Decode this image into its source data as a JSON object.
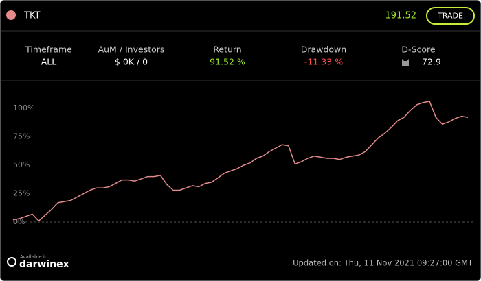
{
  "header": {
    "symbol": "TKT",
    "price": "191.52",
    "button": "TRADE"
  },
  "stats": [
    {
      "label": "Timeframe",
      "value": "ALL"
    },
    {
      "label": "AuM / Investors",
      "value": "$ 0K / 0"
    },
    {
      "label": "Return",
      "value": "91.52 %"
    },
    {
      "label": "Drawdown",
      "value": "-11.33 %"
    },
    {
      "label": "D-Score",
      "value": "72.9"
    }
  ],
  "footer": {
    "brand_small": "Available in",
    "brand": "darwinex",
    "updated": "Updated on: Thu, 11 Nov 2021 09:27:00 GMT"
  },
  "chart_data": {
    "type": "line",
    "color": "#e58a8a",
    "values": [
      2,
      3,
      5,
      7,
      1,
      6,
      11,
      17,
      18,
      19,
      22,
      25,
      28,
      30,
      30,
      31,
      34,
      37,
      37,
      36,
      38,
      40,
      40,
      41,
      33,
      28,
      28,
      30,
      32,
      31,
      34,
      35,
      39,
      43,
      45,
      47,
      50,
      52,
      56,
      58,
      62,
      65,
      68,
      67,
      51,
      53,
      56,
      58,
      57,
      56,
      56,
      55,
      57,
      58,
      59,
      62,
      68,
      74,
      78,
      83,
      89,
      92,
      98,
      103,
      105,
      106,
      92,
      86,
      88,
      91,
      93,
      92
    ],
    "ylim": [
      -5,
      110
    ],
    "yticks": [
      {
        "value": 0,
        "label": "0%"
      },
      {
        "value": 25,
        "label": "25%"
      },
      {
        "value": 50,
        "label": "50%"
      },
      {
        "value": 75,
        "label": "75%"
      },
      {
        "value": 100,
        "label": "100%"
      }
    ]
  }
}
